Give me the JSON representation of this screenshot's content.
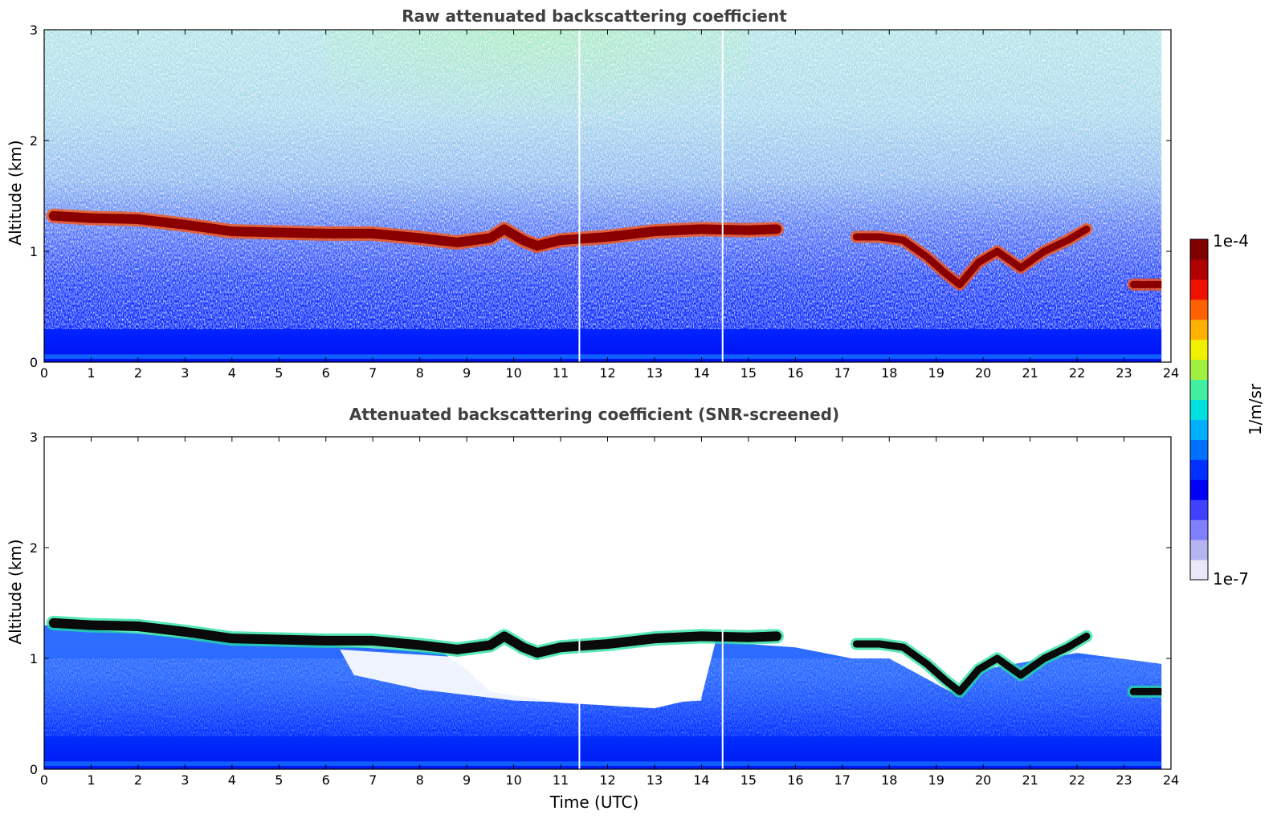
{
  "chart_data": [
    {
      "type": "heatmap",
      "title": "Raw attenuated backscattering coefficient",
      "xlabel": "",
      "ylabel": "Altitude (km)",
      "xlim": [
        0,
        24
      ],
      "ylim": [
        0,
        3
      ],
      "xticks": [
        0,
        1,
        2,
        3,
        4,
        5,
        6,
        7,
        8,
        9,
        10,
        11,
        12,
        13,
        14,
        15,
        16,
        17,
        18,
        19,
        20,
        21,
        22,
        23,
        24
      ],
      "yticks": [
        0,
        1,
        2,
        3
      ],
      "data_end_hour": 23.8,
      "gaps_hours": [
        11.4,
        14.45
      ],
      "layer": {
        "description": "cloud base layer (peak backscatter ~1e-4 1/m/sr)",
        "time_hours": [
          0.2,
          1,
          2,
          3,
          4,
          5,
          6,
          7,
          8,
          8.8,
          9.5,
          9.8,
          10.2,
          10.5,
          11,
          12,
          13,
          14,
          15,
          15.6
        ],
        "altitude_km": [
          1.32,
          1.3,
          1.29,
          1.24,
          1.18,
          1.17,
          1.16,
          1.16,
          1.12,
          1.08,
          1.12,
          1.2,
          1.1,
          1.05,
          1.1,
          1.13,
          1.18,
          1.2,
          1.19,
          1.2
        ]
      },
      "broken_layer": {
        "time_hours": [
          17.3,
          17.8,
          18.3,
          18.8,
          19.2,
          19.5,
          19.9,
          20.3,
          20.8,
          21.3,
          21.8,
          22.2
        ],
        "altitude_km": [
          1.13,
          1.13,
          1.1,
          0.95,
          0.8,
          0.7,
          0.9,
          1.0,
          0.85,
          1.0,
          1.1,
          1.2
        ]
      },
      "low_layer": {
        "time_hours": [
          23.2,
          23.8
        ],
        "altitude_km": [
          0.7,
          0.7
        ]
      }
    },
    {
      "type": "heatmap",
      "title": "Attenuated backscattering coefficient (SNR-screened)",
      "xlabel": "Time (UTC)",
      "ylabel": "Altitude (km)",
      "xlim": [
        0,
        24
      ],
      "ylim": [
        0,
        3
      ],
      "xticks": [
        0,
        1,
        2,
        3,
        4,
        5,
        6,
        7,
        8,
        9,
        10,
        11,
        12,
        13,
        14,
        15,
        16,
        17,
        18,
        19,
        20,
        21,
        22,
        23,
        24
      ],
      "yticks": [
        0,
        1,
        2,
        3
      ]
    }
  ],
  "colorbar": {
    "label": "1/m/sr",
    "max_label": "1e-4",
    "min_label": "1e-7",
    "colors": [
      "#e8e8f8",
      "#b4b4f0",
      "#8080ff",
      "#4040ff",
      "#0000f8",
      "#0030ff",
      "#0070ff",
      "#00b0ff",
      "#00e0e0",
      "#40f0a0",
      "#a0f040",
      "#f0f000",
      "#ffb000",
      "#ff6000",
      "#f01000",
      "#b00000",
      "#800000"
    ]
  }
}
